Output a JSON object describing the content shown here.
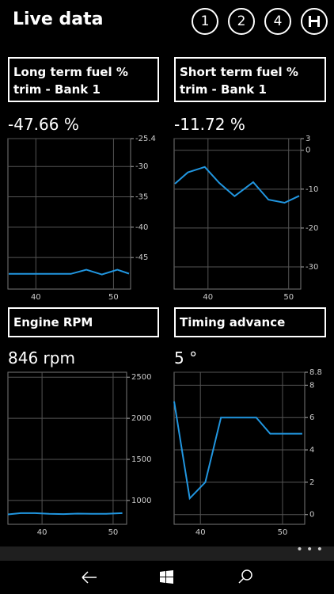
{
  "header": {
    "title": "Live data",
    "buttons": [
      "1",
      "2",
      "4"
    ]
  },
  "chart_data": [
    {
      "type": "line",
      "title": "Long term fuel % trim - Bank 1",
      "reading": "-47.66 %",
      "x": [
        36.5,
        38.5,
        40.5,
        42.5,
        44.5,
        46.5,
        48.5,
        50.5,
        52
      ],
      "series": [
        {
          "color": "#2196e0",
          "values": [
            -47.7,
            -47.7,
            -47.7,
            -47.7,
            -47.7,
            -47.0,
            -47.8,
            -47.0,
            -47.66
          ]
        }
      ],
      "xlim": [
        36.4,
        52.2
      ],
      "xticks": [
        40,
        50
      ],
      "ylim": [
        -50.2,
        -25.4
      ],
      "yticks": [
        -25.4,
        -30,
        -35,
        -40,
        -45
      ],
      "grid": true
    },
    {
      "type": "line",
      "title": "Short term fuel % trim - Bank 1",
      "reading": "-11.72 %",
      "x": [
        35.9,
        37.5,
        39.6,
        41.4,
        43.3,
        45.6,
        47.5,
        49.5,
        51.3
      ],
      "series": [
        {
          "color": "#2196e0",
          "values": [
            -8.6,
            -5.7,
            -4.3,
            -8.4,
            -11.8,
            -8.2,
            -12.7,
            -13.5,
            -11.72
          ]
        }
      ],
      "xlim": [
        35.8,
        51.5
      ],
      "xticks": [
        40,
        50
      ],
      "ylim": [
        -35.7,
        3
      ],
      "yticks": [
        3,
        0,
        -10,
        -20,
        -30
      ],
      "grid": true
    },
    {
      "type": "line",
      "title": "Engine RPM",
      "reading": "846 rpm",
      "x": [
        35.2,
        37,
        39,
        41,
        43,
        45,
        47,
        49,
        51.3
      ],
      "series": [
        {
          "color": "#2196e0",
          "values": [
            830,
            846,
            846,
            838,
            834,
            840,
            838,
            838,
            846
          ]
        }
      ],
      "xlim": [
        35.2,
        51.9
      ],
      "xticks": [
        40,
        50
      ],
      "ylim": [
        710,
        2560
      ],
      "yticks": [
        2500,
        2000,
        1500,
        1000
      ],
      "grid": true
    },
    {
      "type": "line",
      "title": "Timing advance",
      "reading": "5 °",
      "x": [
        36.8,
        38.7,
        40.6,
        42.5,
        46.8,
        48.5,
        52.4
      ],
      "series": [
        {
          "color": "#2196e0",
          "values": [
            7,
            1,
            2,
            6,
            6,
            5,
            5
          ]
        }
      ],
      "xlim": [
        36.8,
        52.7
      ],
      "xticks": [
        40,
        50
      ],
      "ylim": [
        -0.6,
        8.8
      ],
      "yticks": [
        8.8,
        8,
        6,
        4,
        2,
        0
      ],
      "grid": true
    }
  ]
}
